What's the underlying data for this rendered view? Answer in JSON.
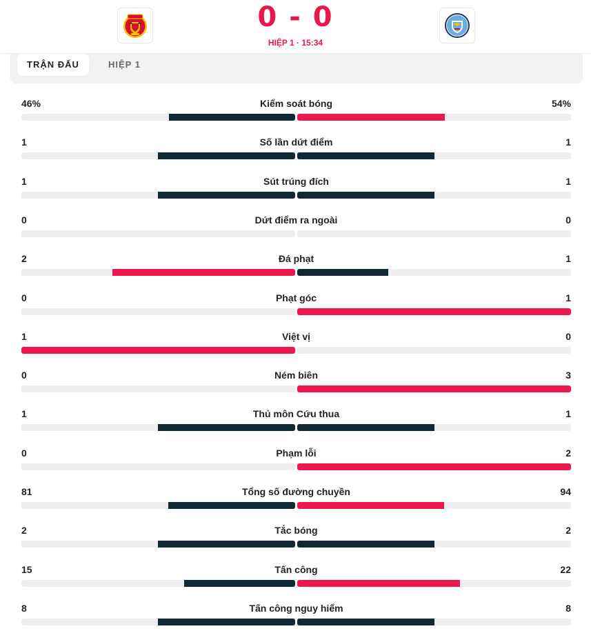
{
  "match": {
    "home_team_icon": "manchester-united-crest",
    "away_team_icon": "manchester-city-crest",
    "home_score": "0",
    "score_separator": "-",
    "away_score": "0",
    "status": "HIỆP 1 · 15:34"
  },
  "tabs": [
    {
      "label": "TRẬN ĐẤU",
      "active": true
    },
    {
      "label": "HIỆP 1",
      "active": false
    }
  ],
  "colors": {
    "dark": "#0f2a33",
    "accent": "#f0174f",
    "track": "#eeeef0"
  },
  "stats": [
    {
      "label": "Kiểm soát bóng",
      "home": "46%",
      "away": "54%",
      "home_share": 0.46,
      "away_share": 0.54,
      "home_color": "dark",
      "away_color": "accent"
    },
    {
      "label": "Số lần dứt điểm",
      "home": "1",
      "away": "1",
      "home_share": 0.5,
      "away_share": 0.5,
      "home_color": "dark",
      "away_color": "dark"
    },
    {
      "label": "Sút trúng đích",
      "home": "1",
      "away": "1",
      "home_share": 0.5,
      "away_share": 0.5,
      "home_color": "dark",
      "away_color": "dark"
    },
    {
      "label": "Dứt điểm ra ngoài",
      "home": "0",
      "away": "0",
      "home_share": 0,
      "away_share": 0,
      "home_color": "dark",
      "away_color": "dark"
    },
    {
      "label": "Đá phạt",
      "home": "2",
      "away": "1",
      "home_share": 0.667,
      "away_share": 0.333,
      "home_color": "accent",
      "away_color": "dark"
    },
    {
      "label": "Phạt góc",
      "home": "0",
      "away": "1",
      "home_share": 0,
      "away_share": 1,
      "home_color": "dark",
      "away_color": "accent"
    },
    {
      "label": "Việt vị",
      "home": "1",
      "away": "0",
      "home_share": 1,
      "away_share": 0,
      "home_color": "accent",
      "away_color": "dark"
    },
    {
      "label": "Ném biên",
      "home": "0",
      "away": "3",
      "home_share": 0,
      "away_share": 1,
      "home_color": "dark",
      "away_color": "accent"
    },
    {
      "label": "Thủ môn Cứu thua",
      "home": "1",
      "away": "1",
      "home_share": 0.5,
      "away_share": 0.5,
      "home_color": "dark",
      "away_color": "dark"
    },
    {
      "label": "Phạm lỗi",
      "home": "0",
      "away": "2",
      "home_share": 0,
      "away_share": 1,
      "home_color": "dark",
      "away_color": "accent"
    },
    {
      "label": "Tổng số đường chuyền",
      "home": "81",
      "away": "94",
      "home_share": 0.463,
      "away_share": 0.537,
      "home_color": "dark",
      "away_color": "accent"
    },
    {
      "label": "Tắc bóng",
      "home": "2",
      "away": "2",
      "home_share": 0.5,
      "away_share": 0.5,
      "home_color": "dark",
      "away_color": "dark"
    },
    {
      "label": "Tấn công",
      "home": "15",
      "away": "22",
      "home_share": 0.405,
      "away_share": 0.595,
      "home_color": "dark",
      "away_color": "accent"
    },
    {
      "label": "Tấn công nguy hiểm",
      "home": "8",
      "away": "8",
      "home_share": 0.5,
      "away_share": 0.5,
      "home_color": "dark",
      "away_color": "dark"
    }
  ]
}
